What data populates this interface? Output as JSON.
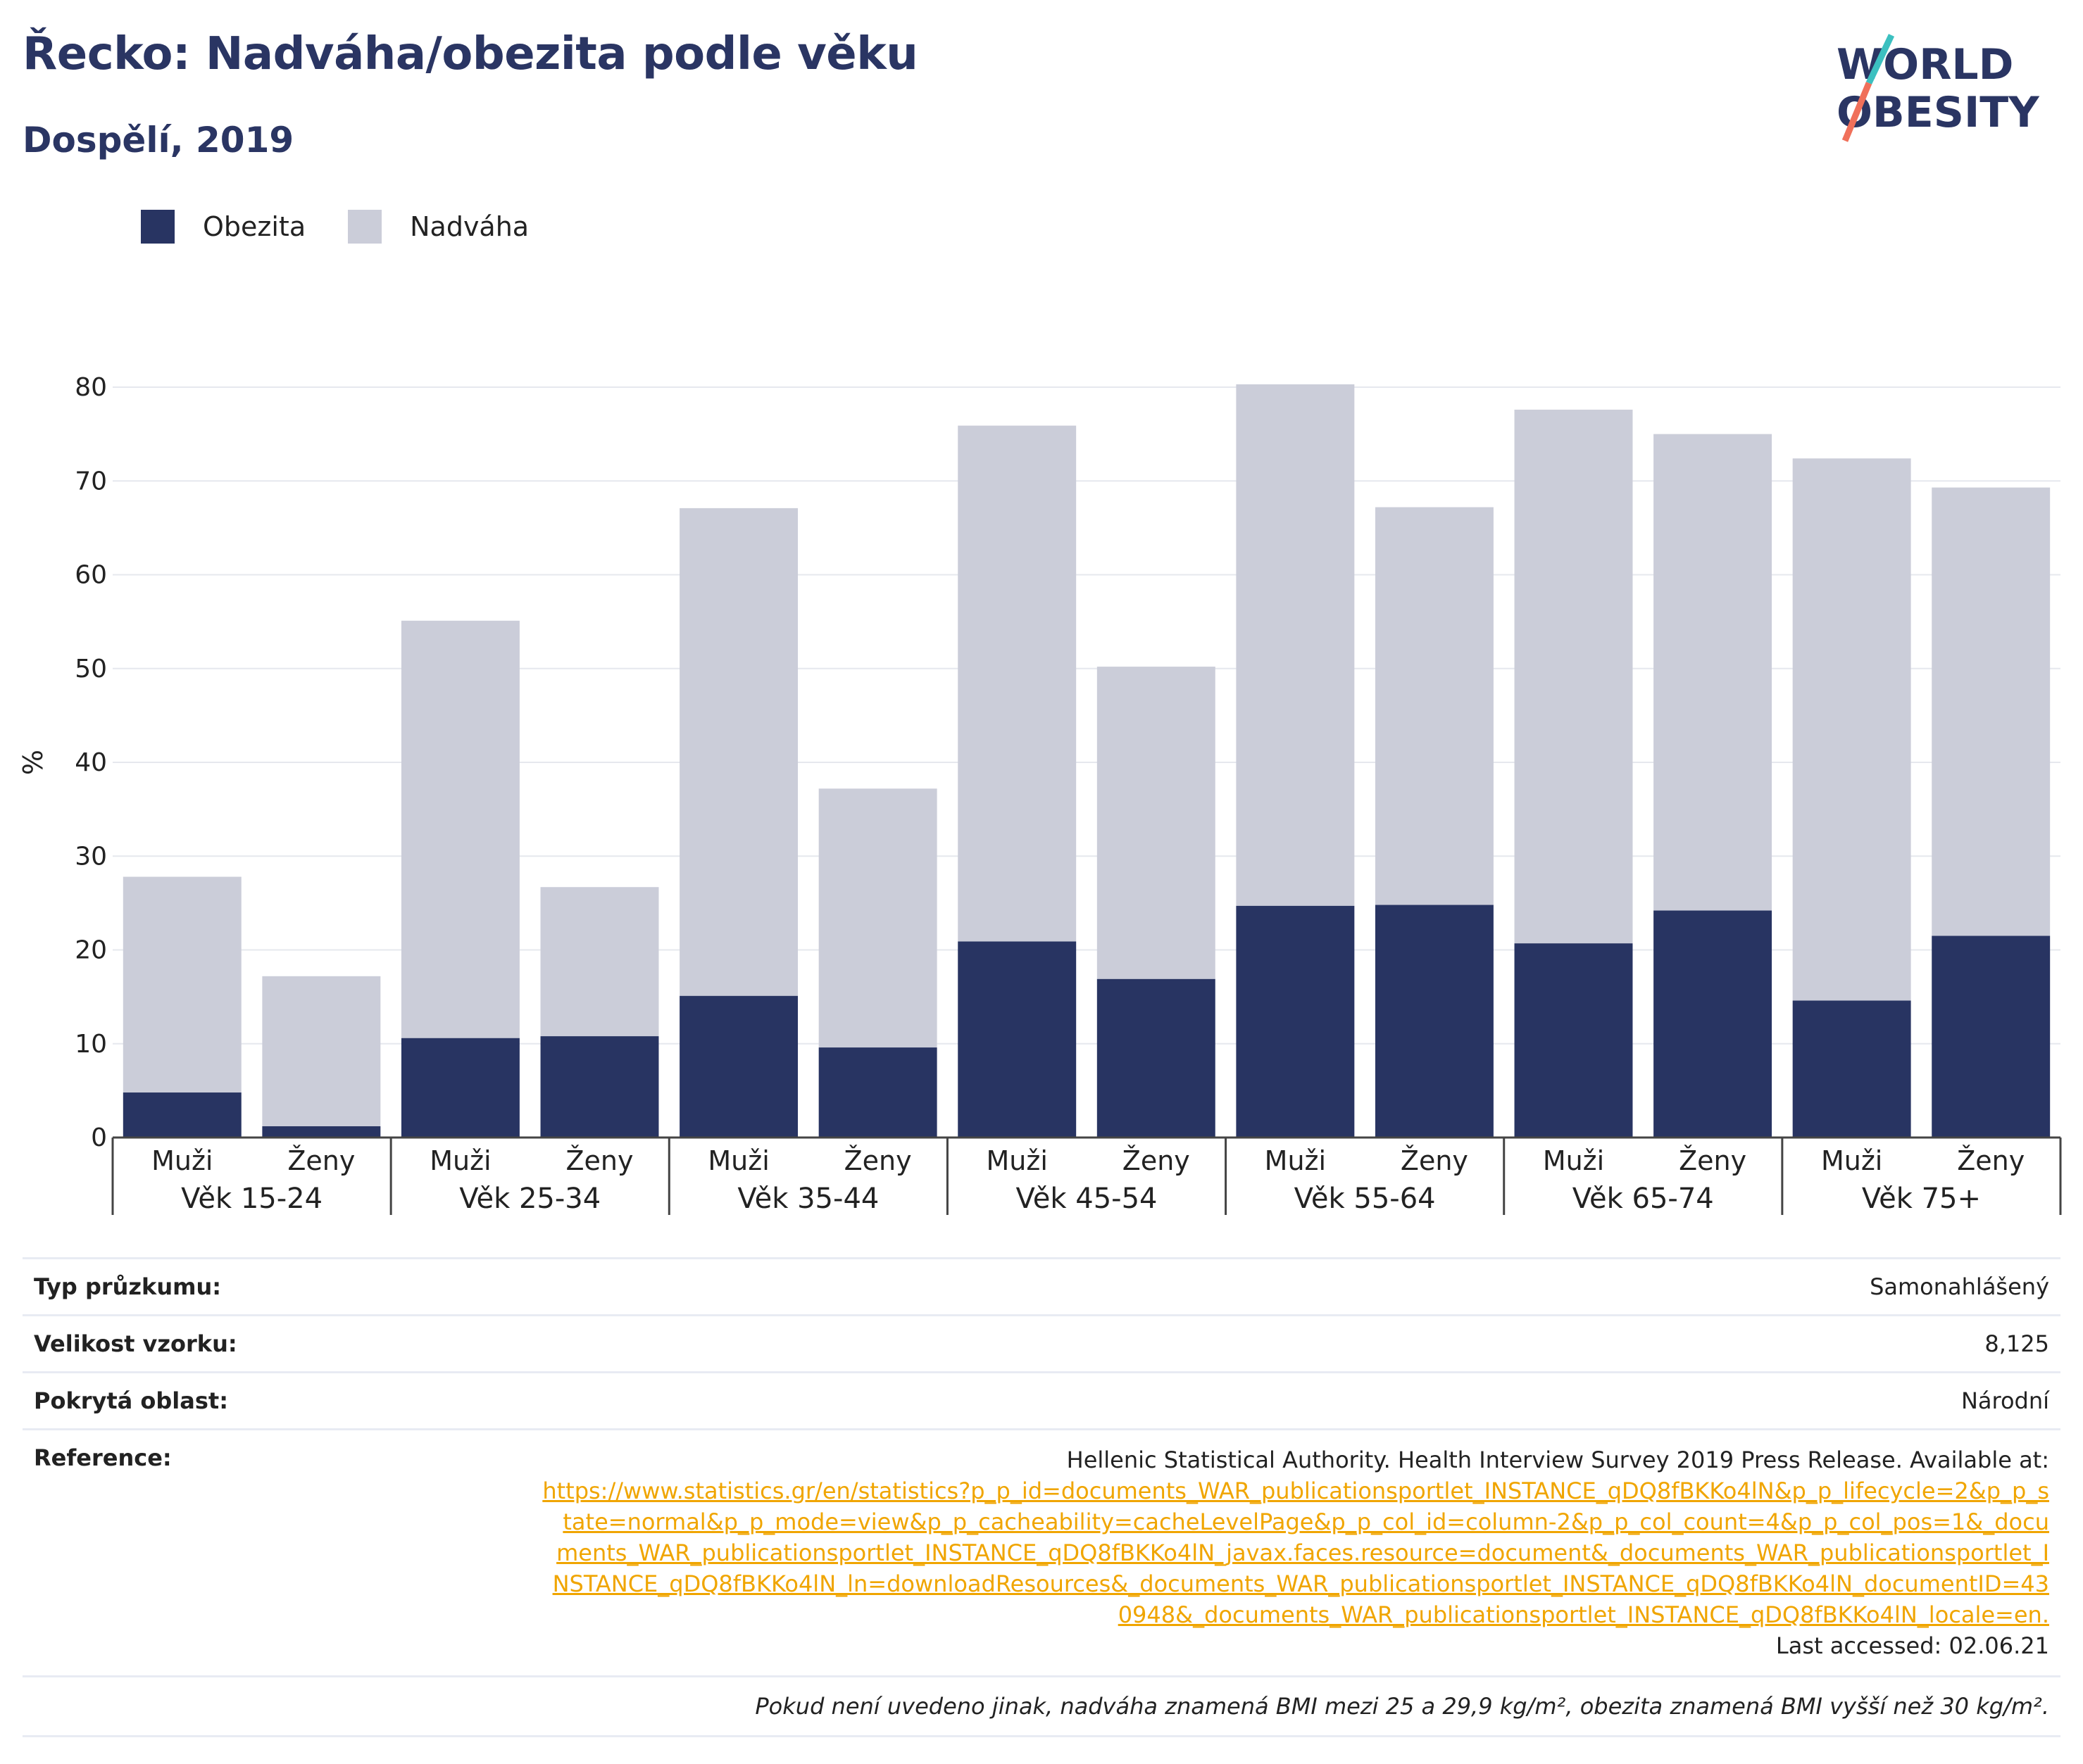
{
  "header": {
    "title": "Řecko: Nadváha/obezita podle věku",
    "subtitle": "Dospělí, 2019"
  },
  "logo": {
    "line1": "WORLD",
    "line2": "OBESITY"
  },
  "colors": {
    "obesity": "#283462",
    "overweight": "#cbcdd9",
    "title": "#2a3563",
    "link": "#f0a500"
  },
  "chart_data": {
    "type": "bar",
    "stacked": true,
    "ylabel": "%",
    "ylim": [
      0,
      80
    ],
    "yticks": [
      0,
      10,
      20,
      30,
      40,
      50,
      60,
      70,
      80
    ],
    "grid": true,
    "legend_position": "top-left",
    "categories": [
      "Muži",
      "Ženy",
      "Muži",
      "Ženy",
      "Muži",
      "Ženy",
      "Muži",
      "Ženy",
      "Muži",
      "Ženy",
      "Muži",
      "Ženy",
      "Muži",
      "Ženy"
    ],
    "groups": [
      "Věk 15-24",
      "Věk 25-34",
      "Věk 35-44",
      "Věk 45-54",
      "Věk 55-64",
      "Věk 65-74",
      "Věk 75+"
    ],
    "series": [
      {
        "name": "Obezita",
        "values": [
          4.8,
          1.2,
          10.6,
          10.8,
          15.1,
          9.6,
          20.9,
          16.9,
          24.7,
          24.8,
          20.7,
          24.2,
          14.6,
          21.5
        ]
      },
      {
        "name": "Nadváha",
        "values": [
          23.0,
          16.0,
          44.5,
          15.9,
          52.0,
          27.6,
          55.0,
          33.3,
          55.6,
          42.4,
          56.9,
          50.8,
          57.8,
          47.8
        ]
      }
    ]
  },
  "table": {
    "survey_type_label": "Typ průzkumu:",
    "survey_type_value": "Samonahlášený",
    "sample_size_label": "Velikost vzorku:",
    "sample_size_value": "8,125",
    "coverage_label": "Pokrytá oblast:",
    "coverage_value": "Národní",
    "reference_label": "Reference:",
    "reference_text": "Hellenic Statistical Authority. Health Interview Survey 2019 Press Release. Available at:",
    "reference_url": "https://www.statistics.gr/en/statistics?p_p_id=documents_WAR_publicationsportlet_INSTANCE_qDQ8fBKKo4lN&p_p_lifecycle=2&p_p_state=normal&p_p_mode=view&p_p_cacheability=cacheLevelPage&p_p_col_id=column-2&p_p_col_count=4&p_p_col_pos=1&_documents_WAR_publicationsportlet_INSTANCE_qDQ8fBKKo4lN_javax.faces.resource=document&_documents_WAR_publicationsportlet_INSTANCE_qDQ8fBKKo4lN_ln=downloadResources&_documents_WAR_publicationsportlet_INSTANCE_qDQ8fBKKo4lN_documentID=430948&_documents_WAR_publicationsportlet_INSTANCE_qDQ8fBKKo4lN_locale=en.",
    "last_accessed": "Last accessed: 02.06.21"
  },
  "footnote": "Pokud není uvedeno jinak, nadváha znamená BMI mezi 25 a 29,9 kg/m², obezita znamená BMI vyšší než 30 kg/m²."
}
